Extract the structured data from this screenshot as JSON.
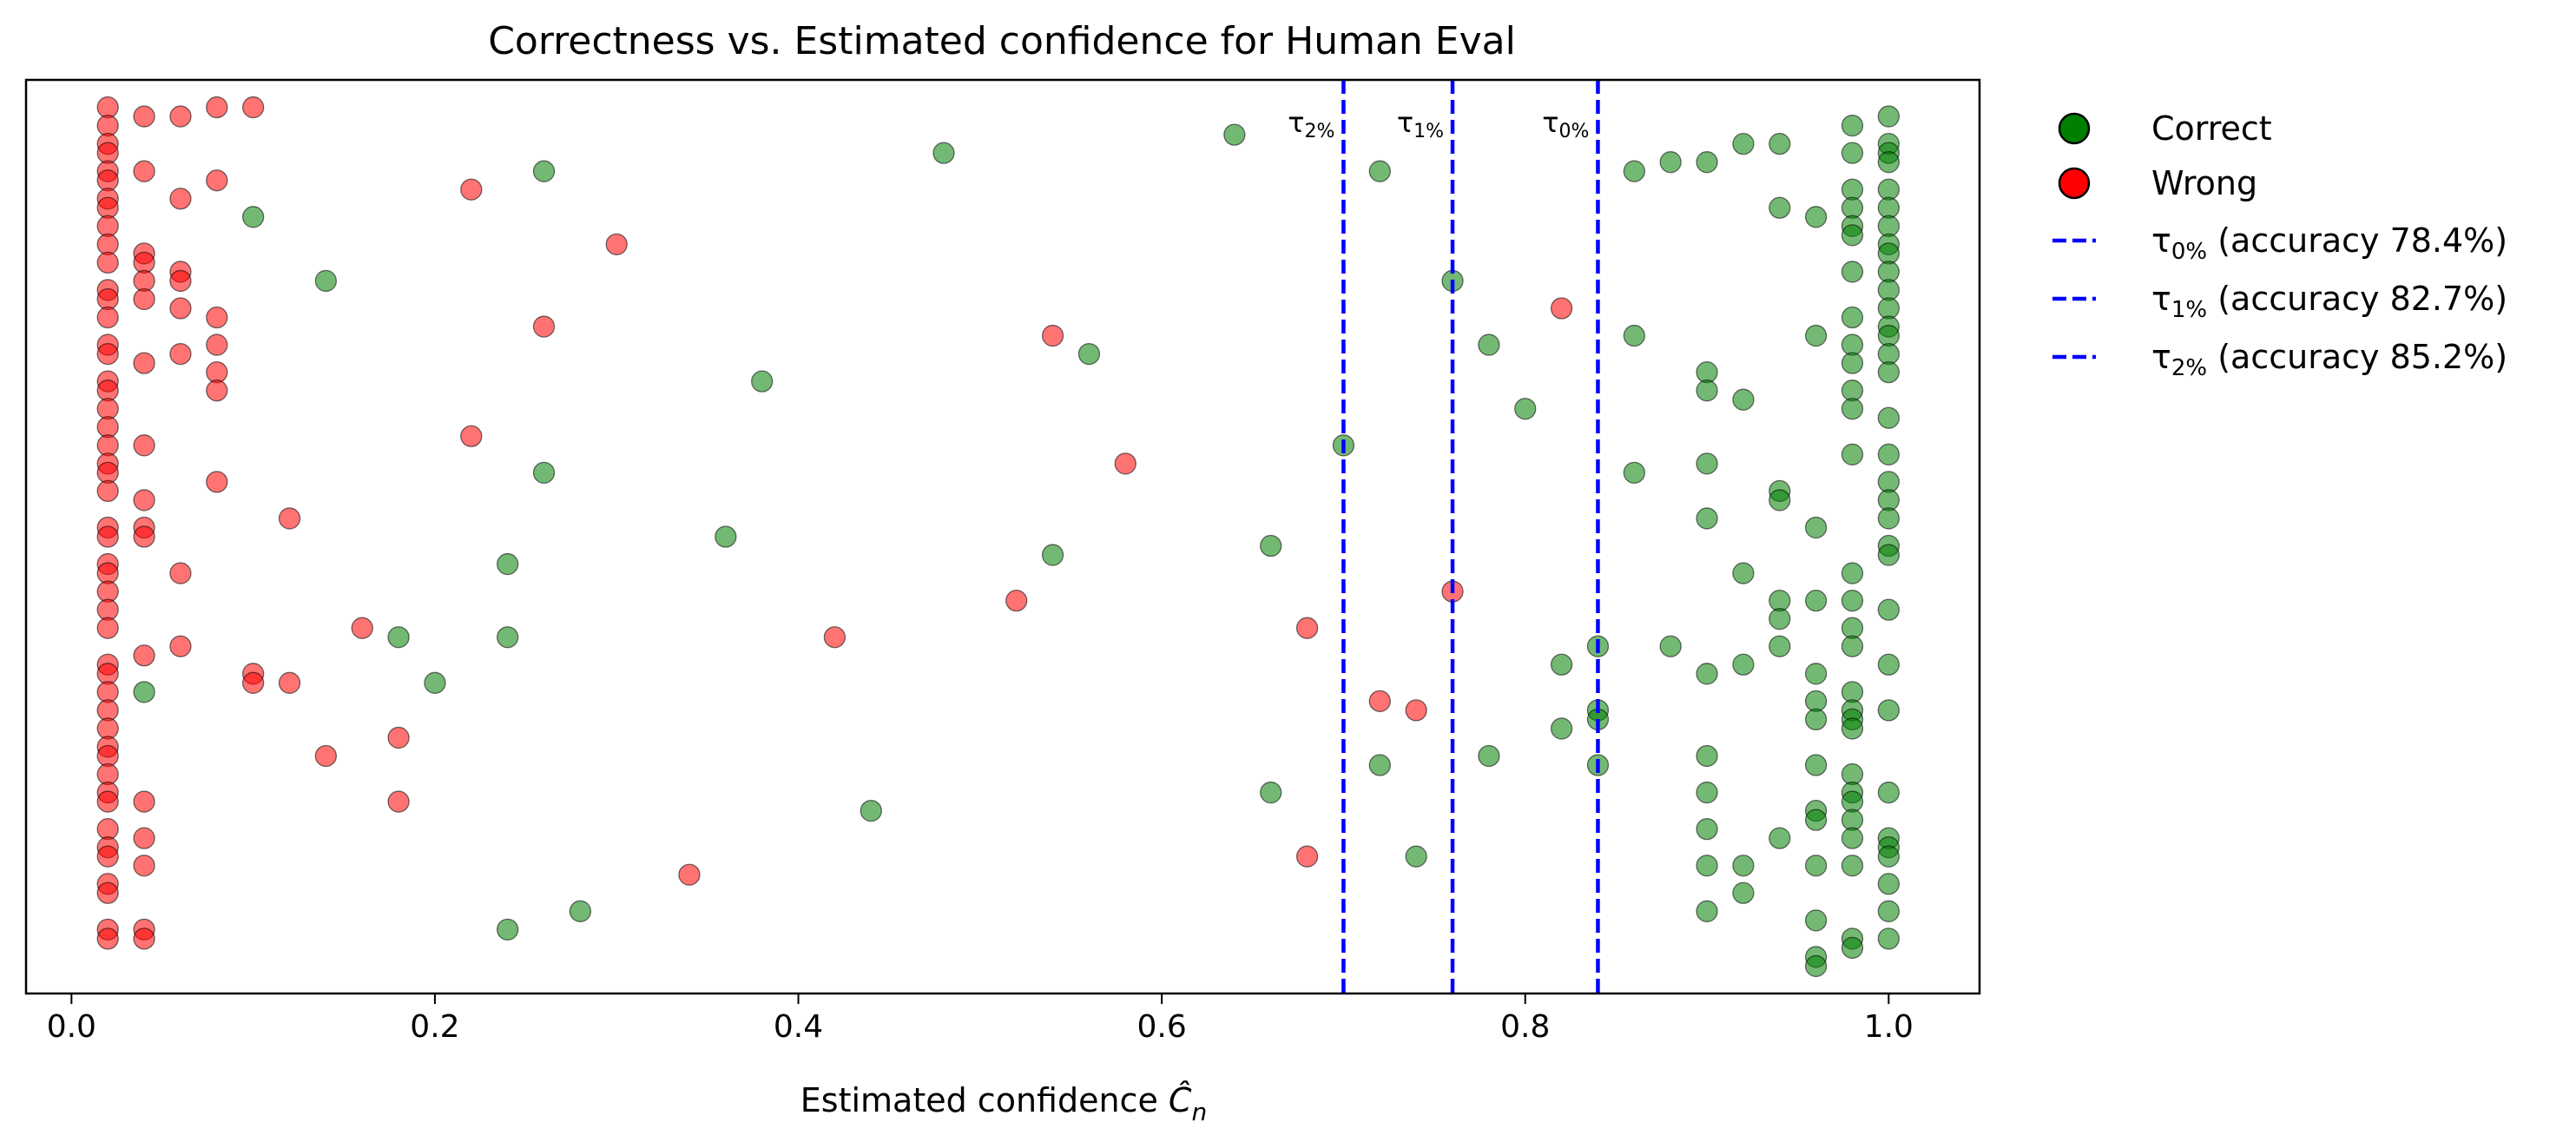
{
  "chart_data": {
    "type": "scatter",
    "title": "Correctness vs. Estimated confidence for Human Eval",
    "xlabel_main": "Estimated confidence ",
    "xlabel_symbol": "Ĉ",
    "xlabel_sub": "n",
    "ylabel": "",
    "xlim": [
      -0.025,
      1.05
    ],
    "ylim": [
      0,
      1
    ],
    "y_ticks_shown": false,
    "x_ticks": [
      0.0,
      0.2,
      0.4,
      0.6,
      0.8,
      1.0
    ],
    "x_tick_labels": [
      "0.0",
      "0.2",
      "0.4",
      "0.6",
      "0.8",
      "1.0"
    ],
    "grid": false,
    "legend_position": "outside-right-top",
    "series": [
      {
        "name": "Correct",
        "color": "#008000",
        "points": [
          [
            0.04,
            0.33
          ],
          [
            0.1,
            0.85
          ],
          [
            0.14,
            0.78
          ],
          [
            0.18,
            0.39
          ],
          [
            0.2,
            0.34
          ],
          [
            0.24,
            0.47
          ],
          [
            0.24,
            0.39
          ],
          [
            0.24,
            0.07
          ],
          [
            0.26,
            0.9
          ],
          [
            0.26,
            0.57
          ],
          [
            0.28,
            0.09
          ],
          [
            0.36,
            0.5
          ],
          [
            0.38,
            0.67
          ],
          [
            0.44,
            0.2
          ],
          [
            0.48,
            0.92
          ],
          [
            0.54,
            0.48
          ],
          [
            0.56,
            0.7
          ],
          [
            0.64,
            0.94
          ],
          [
            0.66,
            0.49
          ],
          [
            0.66,
            0.22
          ],
          [
            0.7,
            0.6
          ],
          [
            0.72,
            0.9
          ],
          [
            0.72,
            0.25
          ],
          [
            0.74,
            0.15
          ],
          [
            0.76,
            0.78
          ],
          [
            0.78,
            0.71
          ],
          [
            0.78,
            0.26
          ],
          [
            0.8,
            0.64
          ],
          [
            0.82,
            0.36
          ],
          [
            0.82,
            0.29
          ],
          [
            0.84,
            0.38
          ],
          [
            0.84,
            0.31
          ],
          [
            0.84,
            0.3
          ],
          [
            0.84,
            0.25
          ],
          [
            0.86,
            0.9
          ],
          [
            0.86,
            0.72
          ],
          [
            0.86,
            0.57
          ],
          [
            0.88,
            0.91
          ],
          [
            0.88,
            0.38
          ],
          [
            0.9,
            0.91
          ],
          [
            0.9,
            0.68
          ],
          [
            0.9,
            0.66
          ],
          [
            0.9,
            0.58
          ],
          [
            0.9,
            0.52
          ],
          [
            0.9,
            0.35
          ],
          [
            0.9,
            0.26
          ],
          [
            0.9,
            0.22
          ],
          [
            0.9,
            0.18
          ],
          [
            0.9,
            0.14
          ],
          [
            0.9,
            0.09
          ],
          [
            0.92,
            0.93
          ],
          [
            0.92,
            0.65
          ],
          [
            0.92,
            0.46
          ],
          [
            0.92,
            0.36
          ],
          [
            0.92,
            0.14
          ],
          [
            0.92,
            0.11
          ],
          [
            0.94,
            0.93
          ],
          [
            0.94,
            0.86
          ],
          [
            0.94,
            0.55
          ],
          [
            0.94,
            0.54
          ],
          [
            0.94,
            0.43
          ],
          [
            0.94,
            0.41
          ],
          [
            0.94,
            0.38
          ],
          [
            0.94,
            0.17
          ],
          [
            0.96,
            0.85
          ],
          [
            0.96,
            0.72
          ],
          [
            0.96,
            0.51
          ],
          [
            0.96,
            0.43
          ],
          [
            0.96,
            0.35
          ],
          [
            0.96,
            0.32
          ],
          [
            0.96,
            0.3
          ],
          [
            0.96,
            0.25
          ],
          [
            0.96,
            0.2
          ],
          [
            0.96,
            0.19
          ],
          [
            0.96,
            0.14
          ],
          [
            0.96,
            0.08
          ],
          [
            0.96,
            0.04
          ],
          [
            0.96,
            0.03
          ],
          [
            0.98,
            0.95
          ],
          [
            0.98,
            0.92
          ],
          [
            0.98,
            0.88
          ],
          [
            0.98,
            0.86
          ],
          [
            0.98,
            0.84
          ],
          [
            0.98,
            0.83
          ],
          [
            0.98,
            0.79
          ],
          [
            0.98,
            0.74
          ],
          [
            0.98,
            0.71
          ],
          [
            0.98,
            0.69
          ],
          [
            0.98,
            0.66
          ],
          [
            0.98,
            0.64
          ],
          [
            0.98,
            0.59
          ],
          [
            0.98,
            0.46
          ],
          [
            0.98,
            0.43
          ],
          [
            0.98,
            0.4
          ],
          [
            0.98,
            0.38
          ],
          [
            0.98,
            0.33
          ],
          [
            0.98,
            0.31
          ],
          [
            0.98,
            0.3
          ],
          [
            0.98,
            0.29
          ],
          [
            0.98,
            0.24
          ],
          [
            0.98,
            0.22
          ],
          [
            0.98,
            0.21
          ],
          [
            0.98,
            0.19
          ],
          [
            0.98,
            0.17
          ],
          [
            0.98,
            0.14
          ],
          [
            0.98,
            0.06
          ],
          [
            0.98,
            0.05
          ],
          [
            1.0,
            0.96
          ],
          [
            1.0,
            0.93
          ],
          [
            1.0,
            0.92
          ],
          [
            1.0,
            0.91
          ],
          [
            1.0,
            0.88
          ],
          [
            1.0,
            0.86
          ],
          [
            1.0,
            0.84
          ],
          [
            1.0,
            0.82
          ],
          [
            1.0,
            0.81
          ],
          [
            1.0,
            0.79
          ],
          [
            1.0,
            0.77
          ],
          [
            1.0,
            0.75
          ],
          [
            1.0,
            0.73
          ],
          [
            1.0,
            0.72
          ],
          [
            1.0,
            0.7
          ],
          [
            1.0,
            0.68
          ],
          [
            1.0,
            0.63
          ],
          [
            1.0,
            0.59
          ],
          [
            1.0,
            0.56
          ],
          [
            1.0,
            0.54
          ],
          [
            1.0,
            0.52
          ],
          [
            1.0,
            0.49
          ],
          [
            1.0,
            0.48
          ],
          [
            1.0,
            0.42
          ],
          [
            1.0,
            0.36
          ],
          [
            1.0,
            0.31
          ],
          [
            1.0,
            0.22
          ],
          [
            1.0,
            0.17
          ],
          [
            1.0,
            0.16
          ],
          [
            1.0,
            0.15
          ],
          [
            1.0,
            0.12
          ],
          [
            1.0,
            0.09
          ],
          [
            1.0,
            0.06
          ]
        ]
      },
      {
        "name": "Wrong",
        "color": "#ff0000",
        "points": [
          [
            0.02,
            0.97
          ],
          [
            0.02,
            0.95
          ],
          [
            0.02,
            0.93
          ],
          [
            0.02,
            0.92
          ],
          [
            0.02,
            0.9
          ],
          [
            0.02,
            0.89
          ],
          [
            0.02,
            0.87
          ],
          [
            0.02,
            0.86
          ],
          [
            0.02,
            0.84
          ],
          [
            0.02,
            0.82
          ],
          [
            0.02,
            0.8
          ],
          [
            0.02,
            0.77
          ],
          [
            0.02,
            0.76
          ],
          [
            0.02,
            0.74
          ],
          [
            0.02,
            0.71
          ],
          [
            0.02,
            0.7
          ],
          [
            0.02,
            0.67
          ],
          [
            0.02,
            0.66
          ],
          [
            0.02,
            0.64
          ],
          [
            0.02,
            0.62
          ],
          [
            0.02,
            0.6
          ],
          [
            0.02,
            0.58
          ],
          [
            0.02,
            0.57
          ],
          [
            0.02,
            0.55
          ],
          [
            0.02,
            0.51
          ],
          [
            0.02,
            0.5
          ],
          [
            0.02,
            0.47
          ],
          [
            0.02,
            0.46
          ],
          [
            0.02,
            0.44
          ],
          [
            0.02,
            0.42
          ],
          [
            0.02,
            0.4
          ],
          [
            0.02,
            0.36
          ],
          [
            0.02,
            0.35
          ],
          [
            0.02,
            0.33
          ],
          [
            0.02,
            0.31
          ],
          [
            0.02,
            0.29
          ],
          [
            0.02,
            0.27
          ],
          [
            0.02,
            0.26
          ],
          [
            0.02,
            0.24
          ],
          [
            0.02,
            0.22
          ],
          [
            0.02,
            0.21
          ],
          [
            0.02,
            0.18
          ],
          [
            0.02,
            0.16
          ],
          [
            0.02,
            0.15
          ],
          [
            0.02,
            0.12
          ],
          [
            0.02,
            0.11
          ],
          [
            0.02,
            0.07
          ],
          [
            0.02,
            0.06
          ],
          [
            0.04,
            0.96
          ],
          [
            0.04,
            0.9
          ],
          [
            0.04,
            0.81
          ],
          [
            0.04,
            0.8
          ],
          [
            0.04,
            0.78
          ],
          [
            0.04,
            0.76
          ],
          [
            0.04,
            0.69
          ],
          [
            0.04,
            0.6
          ],
          [
            0.04,
            0.54
          ],
          [
            0.04,
            0.51
          ],
          [
            0.04,
            0.5
          ],
          [
            0.04,
            0.37
          ],
          [
            0.04,
            0.21
          ],
          [
            0.04,
            0.17
          ],
          [
            0.04,
            0.14
          ],
          [
            0.04,
            0.07
          ],
          [
            0.04,
            0.06
          ],
          [
            0.06,
            0.96
          ],
          [
            0.06,
            0.87
          ],
          [
            0.06,
            0.79
          ],
          [
            0.06,
            0.78
          ],
          [
            0.06,
            0.75
          ],
          [
            0.06,
            0.7
          ],
          [
            0.06,
            0.46
          ],
          [
            0.06,
            0.38
          ],
          [
            0.08,
            0.97
          ],
          [
            0.08,
            0.89
          ],
          [
            0.08,
            0.74
          ],
          [
            0.08,
            0.71
          ],
          [
            0.08,
            0.68
          ],
          [
            0.08,
            0.66
          ],
          [
            0.08,
            0.56
          ],
          [
            0.1,
            0.97
          ],
          [
            0.1,
            0.35
          ],
          [
            0.1,
            0.34
          ],
          [
            0.12,
            0.52
          ],
          [
            0.12,
            0.34
          ],
          [
            0.14,
            0.26
          ],
          [
            0.16,
            0.4
          ],
          [
            0.18,
            0.28
          ],
          [
            0.18,
            0.21
          ],
          [
            0.22,
            0.88
          ],
          [
            0.22,
            0.61
          ],
          [
            0.26,
            0.73
          ],
          [
            0.3,
            0.82
          ],
          [
            0.34,
            0.13
          ],
          [
            0.42,
            0.39
          ],
          [
            0.52,
            0.43
          ],
          [
            0.54,
            0.72
          ],
          [
            0.58,
            0.58
          ],
          [
            0.68,
            0.4
          ],
          [
            0.68,
            0.15
          ],
          [
            0.72,
            0.32
          ],
          [
            0.74,
            0.31
          ],
          [
            0.76,
            0.44
          ],
          [
            0.82,
            0.75
          ]
        ]
      }
    ],
    "thresholds": [
      {
        "tau": "τ",
        "sub": "0%",
        "x": 0.84,
        "legend": "(accuracy 78.4%)",
        "color": "#0000ff"
      },
      {
        "tau": "τ",
        "sub": "1%",
        "x": 0.76,
        "legend": "(accuracy 82.7%)",
        "color": "#0000ff"
      },
      {
        "tau": "τ",
        "sub": "2%",
        "x": 0.7,
        "legend": "(accuracy 85.2%)",
        "color": "#0000ff"
      }
    ]
  }
}
